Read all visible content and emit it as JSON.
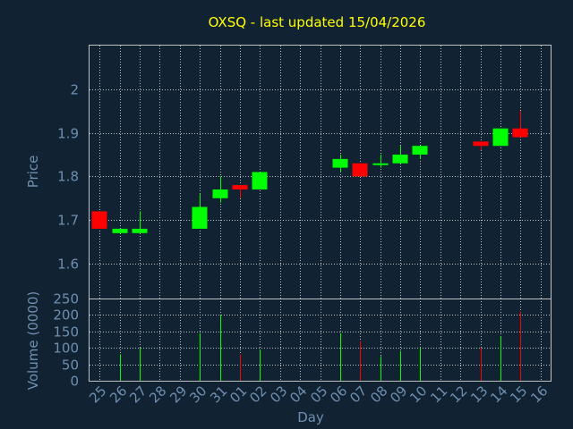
{
  "colors": {
    "background": "#112233",
    "title": "#ffff00",
    "text": "#6f8faf",
    "border": "#c0c0c0",
    "grid": "#c0c0c0",
    "up": "#00ff00",
    "down": "#ff0000"
  },
  "chart_data": [
    {
      "type": "candlestick",
      "title": "OXSQ - last updated 15/04/2026",
      "ylabel": "Price",
      "ylim": [
        1.52,
        2.1
      ],
      "yticks": [
        1.6,
        1.7,
        1.8,
        1.9,
        2.0
      ],
      "ytick_labels": [
        "1.6",
        "1.7",
        "1.8",
        "1.9",
        "2"
      ],
      "grid": true,
      "categories": [
        "25",
        "26",
        "27",
        "28",
        "29",
        "30",
        "31",
        "01",
        "02",
        "03",
        "04",
        "05",
        "06",
        "07",
        "08",
        "09",
        "10",
        "11",
        "12",
        "13",
        "14",
        "15",
        "16"
      ],
      "candles": [
        {
          "x": "25",
          "open": 1.72,
          "close": 1.68,
          "high": 1.72,
          "low": 1.68
        },
        {
          "x": "26",
          "open": 1.67,
          "close": 1.68,
          "high": 1.68,
          "low": 1.67
        },
        {
          "x": "27",
          "open": 1.67,
          "close": 1.68,
          "high": 1.72,
          "low": 1.67
        },
        {
          "x": "30",
          "open": 1.68,
          "close": 1.73,
          "high": 1.76,
          "low": 1.68
        },
        {
          "x": "31",
          "open": 1.75,
          "close": 1.77,
          "high": 1.8,
          "low": 1.74
        },
        {
          "x": "01",
          "open": 1.78,
          "close": 1.77,
          "high": 1.78,
          "low": 1.75
        },
        {
          "x": "02",
          "open": 1.77,
          "close": 1.81,
          "high": 1.81,
          "low": 1.77
        },
        {
          "x": "06",
          "open": 1.82,
          "close": 1.84,
          "high": 1.85,
          "low": 1.81
        },
        {
          "x": "07",
          "open": 1.83,
          "close": 1.8,
          "high": 1.83,
          "low": 1.8
        },
        {
          "x": "08",
          "open": 1.83,
          "close": 1.83,
          "high": 1.85,
          "low": 1.82
        },
        {
          "x": "09",
          "open": 1.83,
          "close": 1.85,
          "high": 1.87,
          "low": 1.83
        },
        {
          "x": "10",
          "open": 1.85,
          "close": 1.87,
          "high": 1.87,
          "low": 1.84
        },
        {
          "x": "13",
          "open": 1.88,
          "close": 1.87,
          "high": 1.88,
          "low": 1.86
        },
        {
          "x": "14",
          "open": 1.87,
          "close": 1.91,
          "high": 1.91,
          "low": 1.87
        },
        {
          "x": "15",
          "open": 1.91,
          "close": 1.89,
          "high": 1.95,
          "low": 1.89
        }
      ]
    },
    {
      "type": "bar",
      "ylabel": "Volume (0000)",
      "xlabel": "Day",
      "ylim": [
        0,
        250
      ],
      "yticks": [
        0,
        50,
        100,
        150,
        200,
        250
      ],
      "grid": true,
      "categories": [
        "25",
        "26",
        "27",
        "28",
        "29",
        "30",
        "31",
        "01",
        "02",
        "03",
        "04",
        "05",
        "06",
        "07",
        "08",
        "09",
        "10",
        "11",
        "12",
        "13",
        "14",
        "15",
        "16"
      ],
      "bars": [
        {
          "x": "26",
          "value": 80,
          "direction": "up"
        },
        {
          "x": "27",
          "value": 100,
          "direction": "up"
        },
        {
          "x": "30",
          "value": 145,
          "direction": "up"
        },
        {
          "x": "31",
          "value": 200,
          "direction": "up"
        },
        {
          "x": "01",
          "value": 80,
          "direction": "down"
        },
        {
          "x": "02",
          "value": 95,
          "direction": "up"
        },
        {
          "x": "06",
          "value": 145,
          "direction": "up"
        },
        {
          "x": "07",
          "value": 120,
          "direction": "down"
        },
        {
          "x": "08",
          "value": 75,
          "direction": "up"
        },
        {
          "x": "09",
          "value": 90,
          "direction": "up"
        },
        {
          "x": "10",
          "value": 100,
          "direction": "up"
        },
        {
          "x": "13",
          "value": 100,
          "direction": "down"
        },
        {
          "x": "14",
          "value": 135,
          "direction": "up"
        },
        {
          "x": "15",
          "value": 210,
          "direction": "down"
        }
      ]
    }
  ]
}
